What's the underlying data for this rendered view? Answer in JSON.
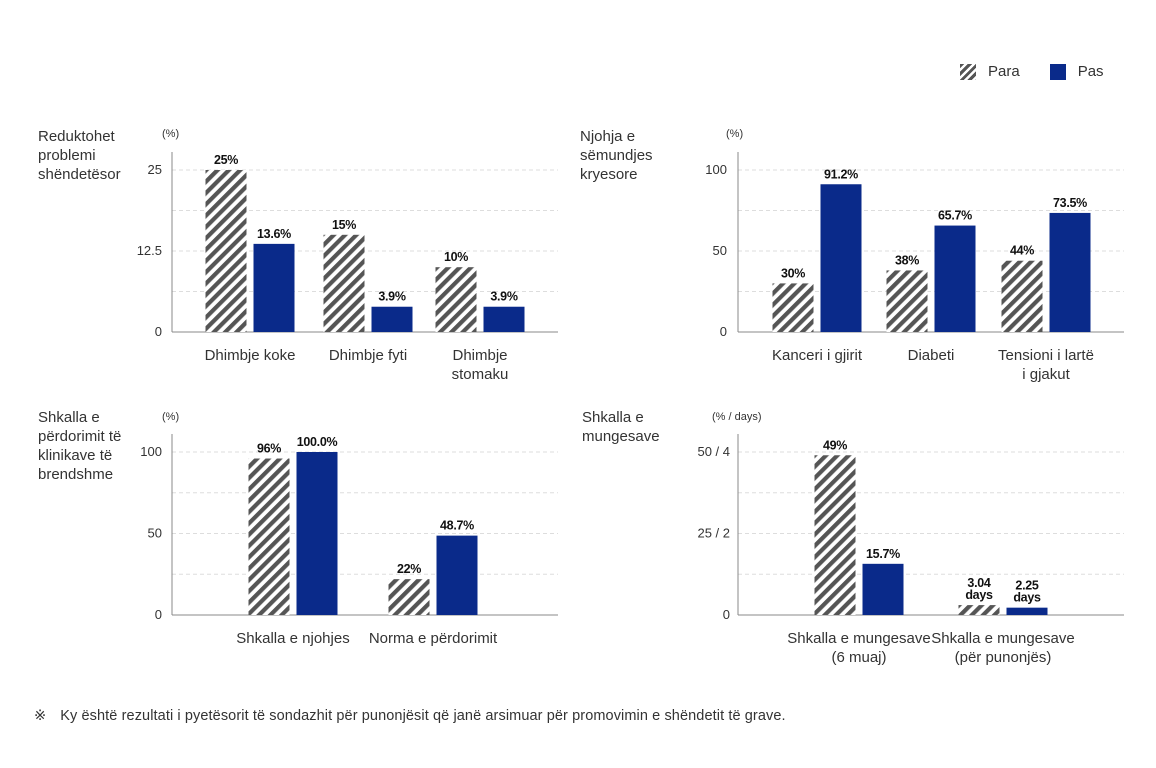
{
  "legend": {
    "before": "Para",
    "after": "Pas"
  },
  "colors": {
    "before_stripe": "#555555",
    "after_fill": "#0a2a8a",
    "axis": "#888888",
    "grid": "#dddddd",
    "text": "#333333"
  },
  "footnote": {
    "mark": "※",
    "text": "Ky është rezultati i pyetësorit të sondazhit për punonjësit që janë arsimuar për promovimin e shëndetit të grave."
  },
  "chart_data": [
    {
      "type": "bar",
      "title": [
        "Reduktohet",
        "problemi",
        "shëndetësor"
      ],
      "unit": "(%)",
      "ylim": [
        0,
        25
      ],
      "yticks": [
        0,
        12.5,
        25
      ],
      "ytick_labels": [
        "0",
        "12.5",
        "25"
      ],
      "categories": [
        [
          "Dhimbje koke"
        ],
        [
          "Dhimbje fyti"
        ],
        [
          "Dhimbje",
          "stomaku"
        ]
      ],
      "series": [
        {
          "name": "Para",
          "values": [
            25,
            15,
            10
          ],
          "labels": [
            [
              "25%"
            ],
            [
              "15%"
            ],
            [
              "10%"
            ]
          ]
        },
        {
          "name": "Pas",
          "values": [
            13.6,
            3.9,
            3.9
          ],
          "labels": [
            [
              "13.6%"
            ],
            [
              "3.9%"
            ],
            [
              "3.9%"
            ]
          ]
        }
      ],
      "grid": true
    },
    {
      "type": "bar",
      "title": [
        "Njohja e",
        "sëmundjes",
        "kryesore"
      ],
      "unit": "(%)",
      "ylim": [
        0,
        100
      ],
      "yticks": [
        0,
        50,
        100
      ],
      "ytick_labels": [
        "0",
        "50",
        "100"
      ],
      "categories": [
        [
          "Kanceri i gjirit"
        ],
        [
          "Diabeti"
        ],
        [
          "Tensioni i lartë",
          "i gjakut"
        ]
      ],
      "series": [
        {
          "name": "Para",
          "values": [
            30,
            38,
            44
          ],
          "labels": [
            [
              "30%"
            ],
            [
              "38%"
            ],
            [
              "44%"
            ]
          ]
        },
        {
          "name": "Pas",
          "values": [
            91.2,
            65.7,
            73.5
          ],
          "labels": [
            [
              "91.2%"
            ],
            [
              "65.7%"
            ],
            [
              "73.5%"
            ]
          ]
        }
      ],
      "grid": true
    },
    {
      "type": "bar",
      "title": [
        "Shkalla e",
        "përdorimit të",
        "klinikave të",
        "brendshme"
      ],
      "unit": "(%)",
      "ylim": [
        0,
        100
      ],
      "yticks": [
        0,
        50,
        100
      ],
      "ytick_labels": [
        "0",
        "50",
        "100"
      ],
      "categories": [
        [
          "Shkalla e njohjes"
        ],
        [
          "Norma e përdorimit"
        ]
      ],
      "series": [
        {
          "name": "Para",
          "values": [
            96,
            22
          ],
          "labels": [
            [
              "96%"
            ],
            [
              "22%"
            ]
          ]
        },
        {
          "name": "Pas",
          "values": [
            100.0,
            48.7
          ],
          "labels": [
            [
              "100.0%"
            ],
            [
              "48.7%"
            ]
          ]
        }
      ],
      "grid": true
    },
    {
      "type": "bar",
      "title": [
        "Shkalla e",
        "mungesave"
      ],
      "unit": "(% / days)",
      "ylim": [
        0,
        50
      ],
      "yticks": [
        0,
        25,
        50
      ],
      "ytick_labels": [
        "0",
        "25 / 2",
        "50 / 4"
      ],
      "categories": [
        [
          "Shkalla e mungesave",
          "(6 muaj)"
        ],
        [
          "Shkalla e mungesave",
          "(për punonjës)"
        ]
      ],
      "series": [
        {
          "name": "Para",
          "values": [
            49,
            3.04
          ],
          "labels": [
            [
              "49%"
            ],
            [
              "3.04",
              "days"
            ]
          ]
        },
        {
          "name": "Pas",
          "values": [
            15.7,
            2.25
          ],
          "labels": [
            [
              "15.7%"
            ],
            [
              "2.25",
              "days"
            ]
          ]
        }
      ],
      "grid": true
    }
  ]
}
